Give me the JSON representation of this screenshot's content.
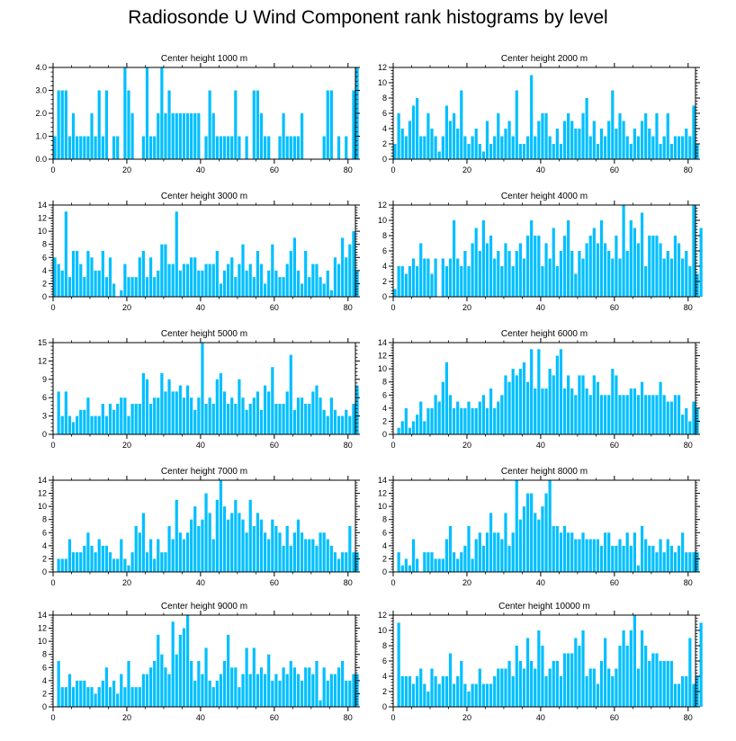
{
  "title": "Radiosonde U Wind Component rank histograms by level",
  "chart_data": [
    {
      "type": "bar",
      "title": "Center height 1000 m",
      "xlim": [
        0,
        82
      ],
      "xticks": [
        0,
        20,
        40,
        60,
        80
      ],
      "ylim": [
        0,
        4
      ],
      "yticks": [
        "0.0",
        "1.0",
        "2.0",
        "3.0",
        "4.0"
      ],
      "values": [
        1,
        3,
        3,
        3,
        1,
        2,
        1,
        1,
        1,
        1,
        2,
        1,
        3,
        1,
        3,
        0,
        1,
        1,
        0,
        4,
        3,
        2,
        0,
        0,
        1,
        4,
        1,
        1,
        2,
        4,
        2,
        3,
        2,
        2,
        2,
        2,
        2,
        2,
        2,
        2,
        0,
        1,
        3,
        2,
        1,
        1,
        1,
        1,
        1,
        3,
        1,
        0,
        1,
        0,
        3,
        3,
        2,
        1,
        1,
        0,
        0,
        1,
        2,
        1,
        1,
        1,
        1,
        2,
        0,
        0,
        0,
        0,
        0,
        1,
        3,
        3,
        0,
        1,
        0,
        1,
        0,
        3,
        4
      ]
    },
    {
      "type": "bar",
      "title": "Center height 2000 m",
      "xlim": [
        0,
        82
      ],
      "xticks": [
        0,
        20,
        40,
        60,
        80
      ],
      "ylim": [
        0,
        12
      ],
      "yticks": [
        "0",
        "2",
        "4",
        "6",
        "8",
        "10",
        "12"
      ],
      "values": [
        2,
        6,
        4,
        3,
        5,
        7,
        8,
        3,
        3,
        6,
        4,
        3,
        1,
        3,
        7,
        5,
        6,
        4,
        9,
        3,
        2,
        3,
        4,
        2,
        1,
        5,
        2,
        3,
        6,
        3,
        4,
        5,
        3,
        9,
        2,
        2,
        3,
        11,
        3,
        5,
        6,
        6,
        3,
        2,
        4,
        2,
        5,
        6,
        5,
        4,
        4,
        6,
        8,
        3,
        5,
        2,
        4,
        3,
        5,
        9,
        4,
        6,
        5,
        3,
        2,
        4,
        3,
        5,
        6,
        4,
        3,
        6,
        2,
        3,
        6,
        2,
        3,
        3,
        3,
        4,
        3,
        7,
        2
      ]
    },
    {
      "type": "bar",
      "title": "Center height 3000 m",
      "xlim": [
        0,
        82
      ],
      "xticks": [
        0,
        20,
        40,
        60,
        80
      ],
      "ylim": [
        0,
        14
      ],
      "yticks": [
        "0",
        "2",
        "4",
        "6",
        "8",
        "10",
        "12",
        "14"
      ],
      "values": [
        6,
        5,
        4,
        13,
        3,
        7,
        7,
        5,
        3,
        7,
        6,
        4,
        4,
        7,
        3,
        6,
        2,
        0,
        1,
        5,
        3,
        3,
        3,
        6,
        7,
        3,
        6,
        3,
        4,
        8,
        8,
        5,
        5,
        13,
        4,
        5,
        5,
        6,
        6,
        4,
        4,
        5,
        5,
        5,
        7,
        2,
        4,
        5,
        6,
        3,
        5,
        8,
        4,
        5,
        3,
        7,
        5,
        2,
        4,
        8,
        4,
        3,
        3,
        5,
        7,
        9,
        4,
        2,
        7,
        3,
        5,
        5,
        3,
        2,
        4,
        1,
        6,
        5,
        9,
        6,
        8,
        10,
        4
      ]
    },
    {
      "type": "bar",
      "title": "Center height 4000 m",
      "xlim": [
        0,
        82
      ],
      "xticks": [
        0,
        20,
        40,
        60,
        80
      ],
      "ylim": [
        0,
        12
      ],
      "yticks": [
        "0",
        "2",
        "4",
        "6",
        "8",
        "10",
        "12"
      ],
      "values": [
        1,
        4,
        4,
        3,
        4,
        5,
        4,
        7,
        5,
        5,
        3,
        5,
        0,
        5,
        4,
        5,
        10,
        5,
        4,
        6,
        4,
        7,
        9,
        6,
        10,
        7,
        8,
        5,
        6,
        4,
        7,
        6,
        4,
        6,
        7,
        5,
        8,
        10,
        8,
        8,
        4,
        7,
        5,
        9,
        4,
        6,
        8,
        10,
        6,
        3,
        6,
        5,
        7,
        8,
        9,
        7,
        10,
        7,
        6,
        5,
        8,
        5,
        12,
        6,
        10,
        9,
        7,
        11,
        4,
        8,
        8,
        8,
        7,
        5,
        6,
        5,
        8,
        7,
        5,
        6,
        4,
        12,
        3,
        9
      ]
    },
    {
      "type": "bar",
      "title": "Center height 5000 m",
      "xlim": [
        0,
        82
      ],
      "xticks": [
        0,
        20,
        40,
        60,
        80
      ],
      "ylim": [
        0,
        15
      ],
      "yticks": [
        "0",
        "3",
        "6",
        "9",
        "12",
        "15"
      ],
      "values": [
        0,
        7,
        3,
        7,
        3,
        2,
        3,
        4,
        4,
        6,
        3,
        3,
        3,
        5,
        3,
        5,
        4,
        5,
        6,
        6,
        3,
        5,
        5,
        5,
        10,
        9,
        5,
        6,
        6,
        10,
        7,
        9,
        7,
        7,
        8,
        6,
        8,
        6,
        4,
        6,
        15,
        5,
        6,
        5,
        9,
        10,
        7,
        5,
        6,
        5,
        9,
        6,
        4,
        5,
        6,
        7,
        4,
        8,
        7,
        11,
        5,
        5,
        5,
        7,
        13,
        4,
        6,
        6,
        5,
        5,
        7,
        8,
        6,
        4,
        3,
        6,
        4,
        3,
        3,
        4,
        3,
        5,
        8
      ]
    },
    {
      "type": "bar",
      "title": "Center height 6000 m",
      "xlim": [
        0,
        82
      ],
      "xticks": [
        0,
        20,
        40,
        60,
        80
      ],
      "ylim": [
        0,
        14
      ],
      "yticks": [
        "0",
        "2",
        "4",
        "6",
        "8",
        "10",
        "12",
        "14"
      ],
      "values": [
        0,
        1,
        2,
        4,
        1,
        2,
        3,
        5,
        2,
        4,
        4,
        6,
        5,
        8,
        11,
        6,
        4,
        5,
        4,
        4,
        5,
        4,
        4,
        5,
        6,
        4,
        7,
        4,
        5,
        6,
        9,
        8,
        10,
        9,
        10,
        11,
        8,
        13,
        7,
        13,
        7,
        7,
        10,
        9,
        12,
        13,
        7,
        9,
        7,
        6,
        9,
        9,
        7,
        6,
        9,
        8,
        6,
        6,
        6,
        10,
        9,
        6,
        6,
        6,
        7,
        7,
        6,
        8,
        6,
        6,
        6,
        6,
        8,
        6,
        5,
        5,
        6,
        6,
        3,
        4,
        2,
        5,
        4
      ]
    },
    {
      "type": "bar",
      "title": "Center height 7000 m",
      "xlim": [
        0,
        82
      ],
      "xticks": [
        0,
        20,
        40,
        60,
        80
      ],
      "ylim": [
        0,
        14
      ],
      "yticks": [
        "0",
        "2",
        "4",
        "6",
        "8",
        "10",
        "12",
        "14"
      ],
      "values": [
        0,
        2,
        2,
        2,
        5,
        3,
        3,
        3,
        4,
        6,
        4,
        3,
        5,
        4,
        4,
        3,
        2,
        2,
        5,
        2,
        1,
        3,
        7,
        6,
        9,
        3,
        5,
        2,
        5,
        3,
        3,
        7,
        5,
        11,
        6,
        5,
        6,
        8,
        10,
        7,
        8,
        12,
        9,
        5,
        11,
        14,
        10,
        8,
        9,
        11,
        9,
        8,
        6,
        11,
        7,
        9,
        8,
        6,
        5,
        8,
        7,
        6,
        4,
        7,
        4,
        6,
        8,
        6,
        5,
        5,
        5,
        4,
        6,
        6,
        5,
        4,
        3,
        2,
        3,
        3,
        7,
        3,
        3
      ]
    },
    {
      "type": "bar",
      "title": "Center height 8000 m",
      "xlim": [
        0,
        82
      ],
      "xticks": [
        0,
        20,
        40,
        60,
        80
      ],
      "ylim": [
        0,
        14
      ],
      "yticks": [
        "0",
        "2",
        "4",
        "6",
        "8",
        "10",
        "12",
        "14"
      ],
      "values": [
        0,
        3,
        1,
        2,
        1,
        5,
        2,
        0,
        3,
        3,
        3,
        2,
        2,
        2,
        5,
        7,
        3,
        2,
        3,
        4,
        7,
        2,
        5,
        6,
        4,
        6,
        9,
        6,
        6,
        5,
        9,
        4,
        6,
        14,
        8,
        10,
        12,
        12,
        9,
        8,
        10,
        12,
        14,
        7,
        7,
        6,
        7,
        6,
        6,
        5,
        5,
        6,
        5,
        5,
        5,
        5,
        4,
        6,
        6,
        4,
        4,
        5,
        4,
        6,
        4,
        6,
        1,
        7,
        5,
        4,
        4,
        3,
        5,
        3,
        5,
        4,
        3,
        4,
        6,
        3,
        3,
        3,
        3
      ]
    },
    {
      "type": "bar",
      "title": "Center height 9000 m",
      "xlim": [
        0,
        82
      ],
      "xticks": [
        0,
        20,
        40,
        60,
        80
      ],
      "ylim": [
        0,
        14
      ],
      "yticks": [
        "0",
        "2",
        "4",
        "6",
        "8",
        "10",
        "12",
        "14"
      ],
      "values": [
        0,
        7,
        3,
        3,
        5,
        3,
        4,
        4,
        4,
        3,
        3,
        2,
        3,
        4,
        6,
        3,
        4,
        2,
        5,
        3,
        7,
        3,
        3,
        3,
        5,
        5,
        6,
        7,
        11,
        8,
        6,
        5,
        13,
        8,
        11,
        12,
        14,
        7,
        4,
        7,
        5,
        9,
        4,
        3,
        4,
        5,
        7,
        11,
        6,
        6,
        3,
        5,
        9,
        5,
        9,
        5,
        6,
        5,
        8,
        4,
        5,
        4,
        6,
        5,
        7,
        6,
        5,
        4,
        6,
        6,
        5,
        7,
        1,
        6,
        4,
        5,
        5,
        6,
        7,
        4,
        4,
        5,
        5
      ]
    },
    {
      "type": "bar",
      "title": "Center height 10000 m",
      "xlim": [
        0,
        82
      ],
      "xticks": [
        0,
        20,
        40,
        60,
        80
      ],
      "ylim": [
        0,
        12
      ],
      "yticks": [
        "0",
        "2",
        "4",
        "6",
        "8",
        "10",
        "12"
      ],
      "values": [
        0,
        11,
        4,
        4,
        4,
        3,
        4,
        5,
        3,
        2,
        5,
        4,
        3,
        4,
        4,
        7,
        3,
        4,
        6,
        3,
        2,
        3,
        3,
        5,
        3,
        3,
        3,
        4,
        5,
        5,
        5,
        6,
        4,
        8,
        6,
        5,
        9,
        6,
        5,
        10,
        8,
        4,
        5,
        6,
        6,
        4,
        7,
        7,
        7,
        9,
        8,
        10,
        4,
        5,
        5,
        3,
        6,
        9,
        5,
        4,
        5,
        8,
        10,
        8,
        10,
        12,
        5,
        10,
        8,
        6,
        7,
        7,
        6,
        6,
        6,
        6,
        3,
        3,
        4,
        4,
        9,
        3,
        4,
        11
      ]
    }
  ]
}
